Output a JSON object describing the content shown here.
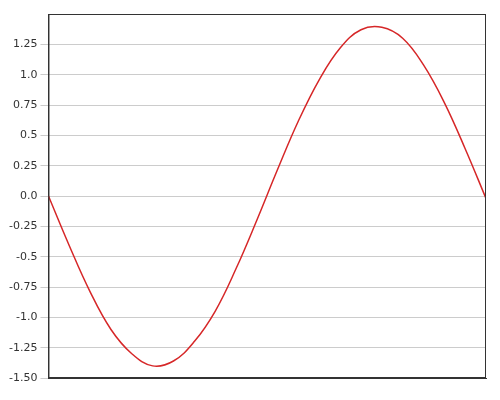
{
  "chart_data": {
    "type": "line",
    "x": [
      0,
      0.3,
      0.6,
      0.9,
      1.2,
      1.5,
      1.8,
      2.1,
      2.4,
      2.7,
      3.0,
      3.3,
      3.6,
      3.9,
      4.2,
      4.5,
      4.8,
      5.1,
      5.4,
      5.7,
      6.0,
      6.3
    ],
    "values": [
      0,
      -0.41,
      -0.79,
      -1.1,
      -1.3,
      -1.4,
      -1.36,
      -1.2,
      -0.95,
      -0.6,
      -0.2,
      0.22,
      0.62,
      0.96,
      1.22,
      1.37,
      1.39,
      1.3,
      1.08,
      0.77,
      0.39,
      -0.02
    ],
    "color": "#d62728",
    "xlim": [
      0,
      6.3
    ],
    "ylim": [
      -1.5,
      1.5
    ],
    "yticks": [
      {
        "value": -1.5,
        "label": "-1.50"
      },
      -1.25,
      {
        "value": -1,
        "label": "-1.0"
      },
      -0.75,
      {
        "value": -0.5,
        "label": "-0.5"
      },
      -0.25,
      {
        "value": 0,
        "label": "0.0"
      },
      0.25,
      {
        "value": 0.5,
        "label": "0.5"
      },
      0.75,
      {
        "value": 1,
        "label": "1.0"
      },
      1.25
    ],
    "grid": true,
    "tick_labels": "y"
  }
}
